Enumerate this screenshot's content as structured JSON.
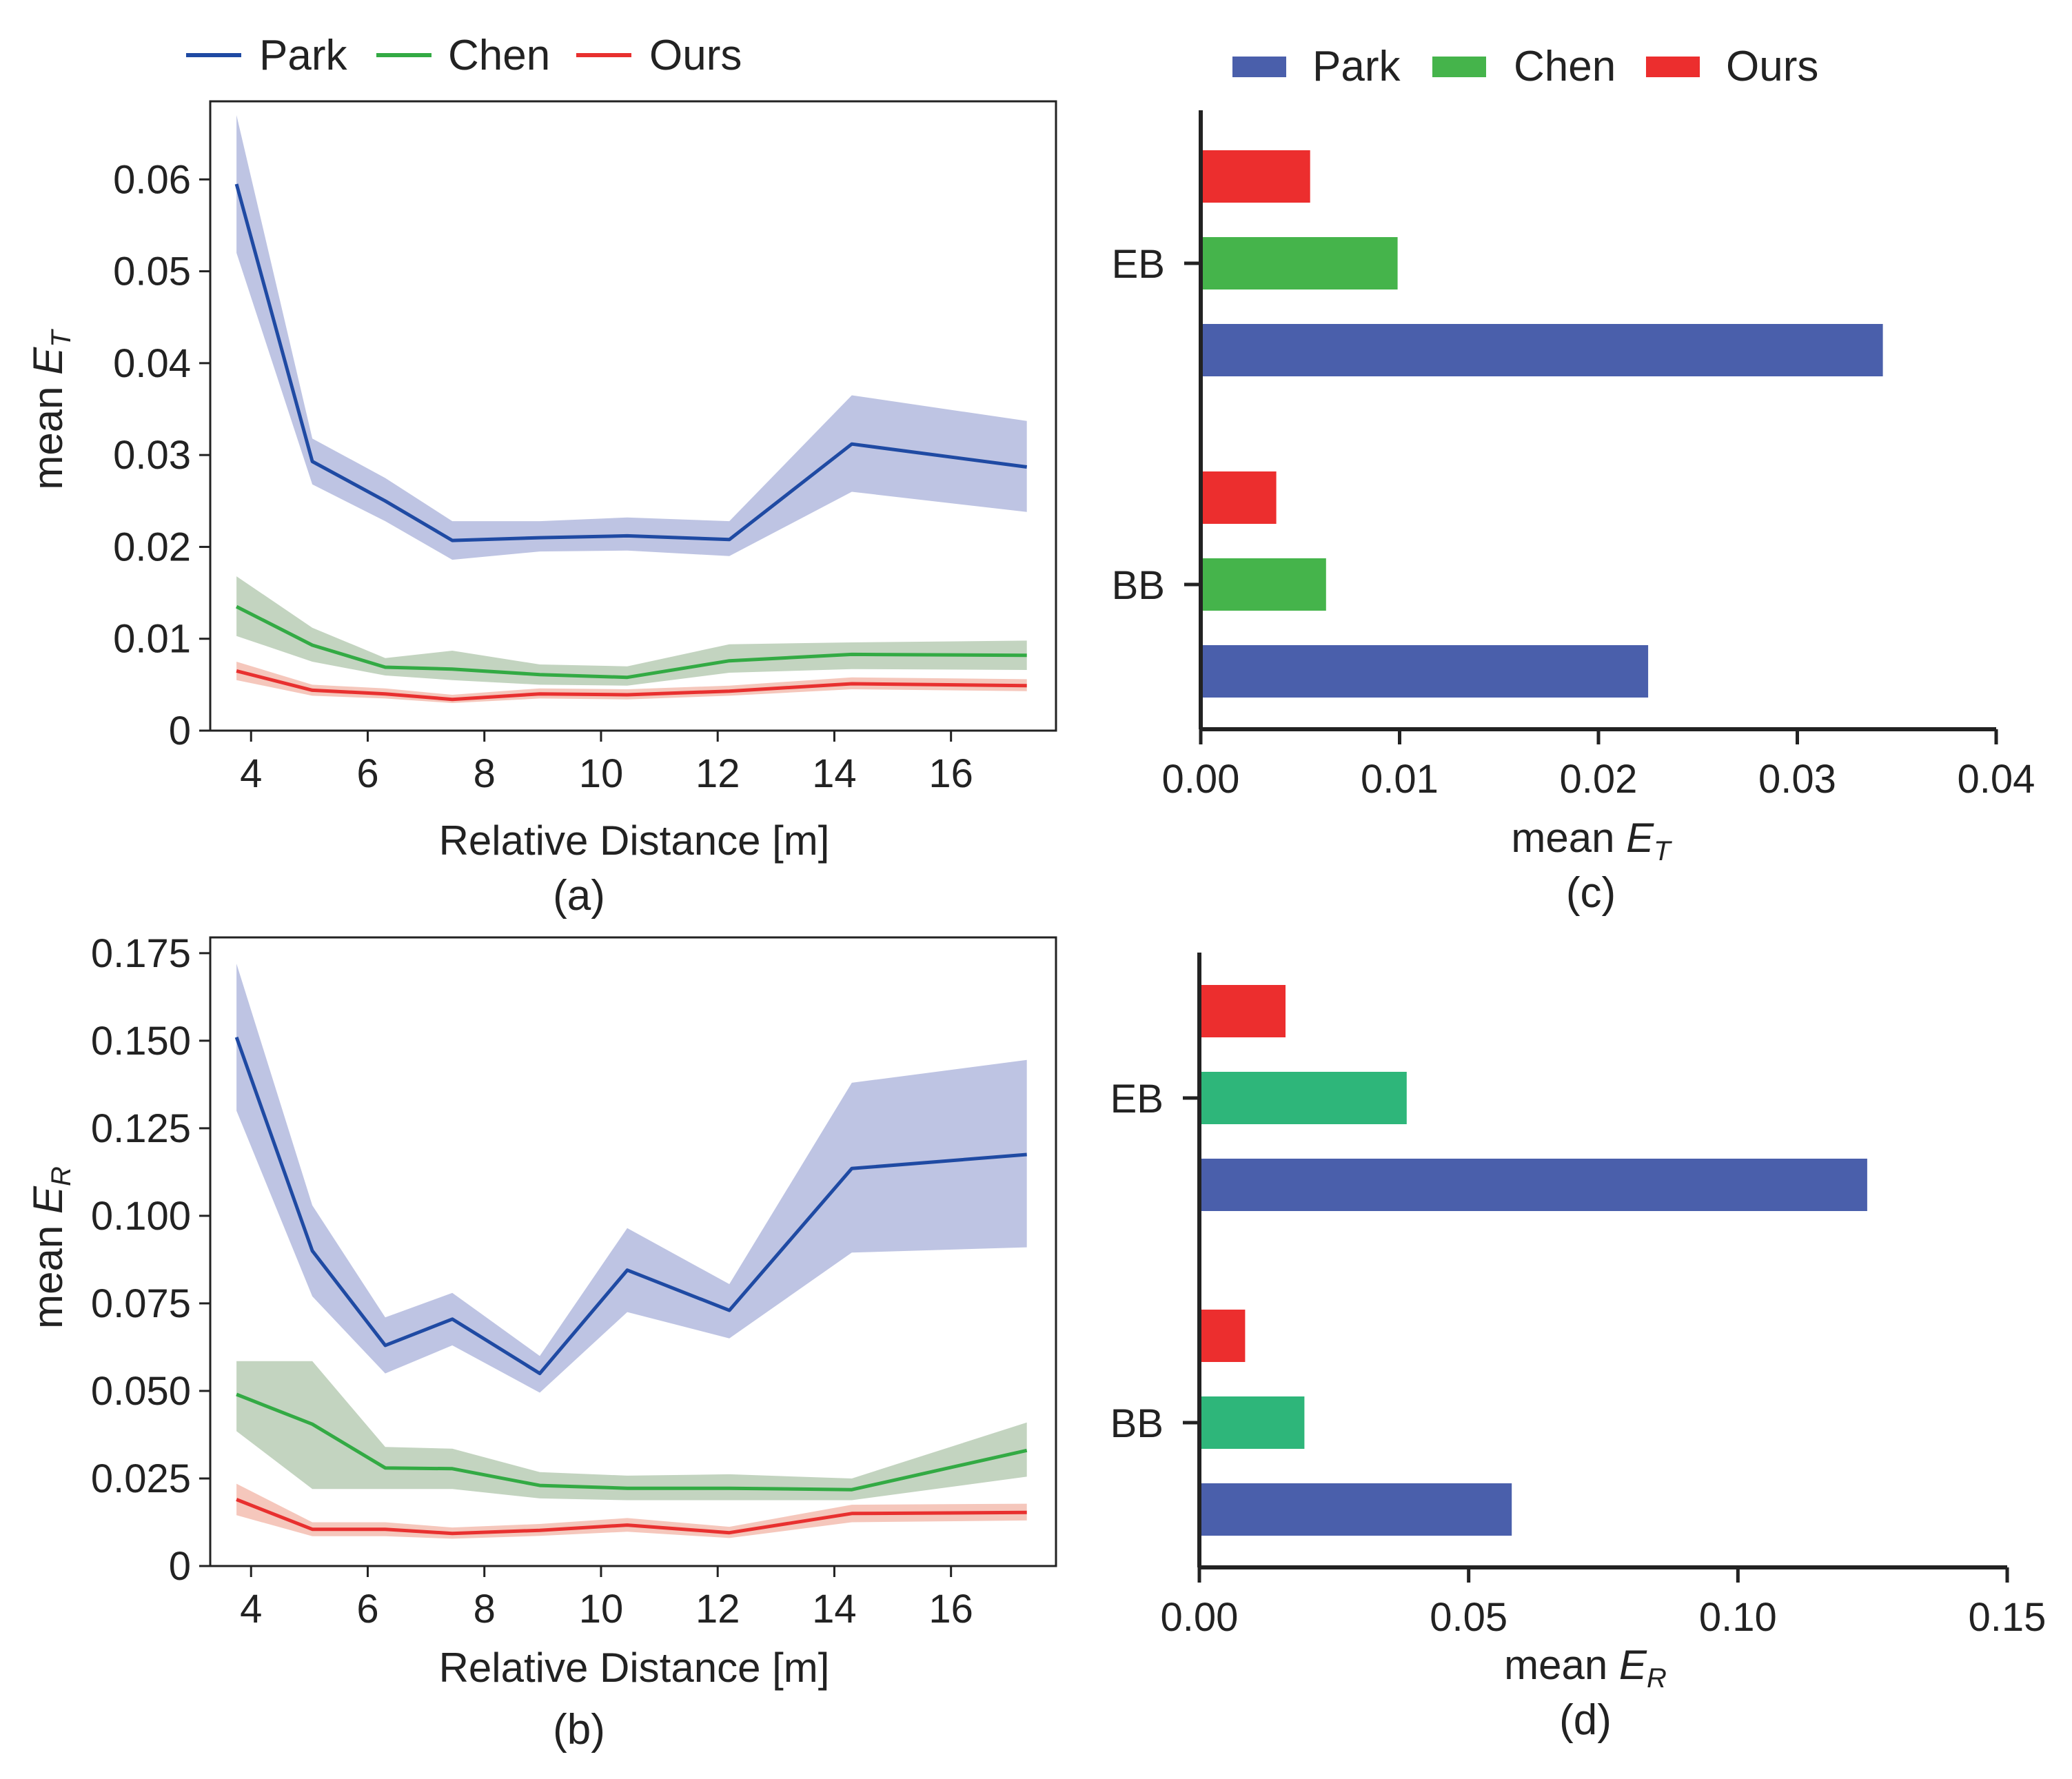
{
  "colors": {
    "park_line": "#1f4aa3",
    "chen_line": "#33aa44",
    "ours_line": "#e8302f",
    "park_band": "#b3bade",
    "chen_band": "#b9ccb5",
    "ours_band": "#f3bdb0",
    "park_bar": "#4a5fab",
    "chen_bar_c": "#45b44b",
    "chen_bar_d": "#2eb67a",
    "ours_bar": "#ec2e2e"
  },
  "chart_data": [
    {
      "id": "a",
      "type": "line",
      "caption": "(a)",
      "xlabel": "Relative Distance [m]",
      "ylabel_main": "mean ",
      "ylabel_symbol": "E",
      "ylabel_sub": "T",
      "xlim": [
        3.3,
        17.8
      ],
      "ylim": [
        0,
        0.0685
      ],
      "xticks": [
        4,
        6,
        8,
        10,
        12,
        14,
        16
      ],
      "xtick_labels": [
        "4",
        "6",
        "8",
        "10",
        "12",
        "14",
        "16"
      ],
      "yticks": [
        0,
        0.01,
        0.02,
        0.03,
        0.04,
        0.05,
        0.06
      ],
      "ytick_labels": [
        "0",
        "0.01",
        "0.02",
        "0.03",
        "0.04",
        "0.05",
        "0.06"
      ],
      "legend": [
        "Park",
        "Chen",
        "Ours"
      ],
      "x": [
        3.75,
        5.05,
        6.3,
        7.45,
        8.95,
        10.45,
        12.2,
        14.3,
        17.3
      ],
      "series": [
        {
          "name": "Park",
          "values": [
            0.0595,
            0.0293,
            0.025,
            0.0207,
            0.021,
            0.0212,
            0.0208,
            0.0312,
            0.0287
          ],
          "lower": [
            0.052,
            0.0268,
            0.0228,
            0.0186,
            0.0195,
            0.0196,
            0.019,
            0.026,
            0.0238
          ],
          "upper": [
            0.067,
            0.0318,
            0.0275,
            0.0228,
            0.0228,
            0.0232,
            0.0228,
            0.0365,
            0.0337
          ]
        },
        {
          "name": "Chen",
          "values": [
            0.0135,
            0.0093,
            0.0069,
            0.0067,
            0.0061,
            0.0058,
            0.0076,
            0.0083,
            0.0082
          ],
          "lower": [
            0.0103,
            0.0075,
            0.006,
            0.0055,
            0.005,
            0.0049,
            0.0063,
            0.0067,
            0.0066
          ],
          "upper": [
            0.0168,
            0.0112,
            0.0079,
            0.0087,
            0.0072,
            0.007,
            0.0094,
            0.0096,
            0.0098
          ]
        },
        {
          "name": "Ours",
          "values": [
            0.0065,
            0.0044,
            0.004,
            0.0034,
            0.004,
            0.0039,
            0.0043,
            0.0051,
            0.0049
          ],
          "lower": [
            0.0055,
            0.0038,
            0.0035,
            0.003,
            0.0035,
            0.0034,
            0.0038,
            0.0045,
            0.0043
          ],
          "upper": [
            0.0075,
            0.005,
            0.0046,
            0.0039,
            0.0046,
            0.0045,
            0.0049,
            0.0058,
            0.0056
          ]
        }
      ]
    },
    {
      "id": "b",
      "type": "line",
      "caption": "(b)",
      "xlabel": "Relative Distance [m]",
      "ylabel_main": "mean ",
      "ylabel_symbol": "E",
      "ylabel_sub": "R",
      "xlim": [
        3.3,
        17.8
      ],
      "ylim": [
        0,
        0.1795
      ],
      "xticks": [
        4,
        6,
        8,
        10,
        12,
        14,
        16
      ],
      "xtick_labels": [
        "4",
        "6",
        "8",
        "10",
        "12",
        "14",
        "16"
      ],
      "yticks": [
        0,
        0.025,
        0.05,
        0.075,
        0.1,
        0.125,
        0.15,
        0.175
      ],
      "ytick_labels": [
        "0",
        "0.025",
        "0.050",
        "0.075",
        "0.100",
        "0.125",
        "0.150",
        "0.175"
      ],
      "x": [
        3.75,
        5.05,
        6.3,
        7.45,
        8.95,
        10.45,
        12.2,
        14.3,
        17.3
      ],
      "series": [
        {
          "name": "Park",
          "values": [
            0.151,
            0.09,
            0.063,
            0.0705,
            0.055,
            0.0845,
            0.073,
            0.1135,
            0.1175
          ],
          "lower": [
            0.13,
            0.077,
            0.055,
            0.063,
            0.0495,
            0.0725,
            0.065,
            0.0895,
            0.091
          ],
          "upper": [
            0.172,
            0.103,
            0.071,
            0.078,
            0.06,
            0.0965,
            0.0805,
            0.138,
            0.1445
          ]
        },
        {
          "name": "Chen",
          "values": [
            0.049,
            0.0405,
            0.028,
            0.0278,
            0.023,
            0.0222,
            0.0222,
            0.0218,
            0.033
          ],
          "lower": [
            0.0385,
            0.022,
            0.022,
            0.022,
            0.0193,
            0.0188,
            0.0188,
            0.0188,
            0.0255
          ],
          "upper": [
            0.0585,
            0.0585,
            0.034,
            0.0335,
            0.0268,
            0.0258,
            0.0262,
            0.025,
            0.041
          ]
        },
        {
          "name": "Ours",
          "values": [
            0.019,
            0.0105,
            0.0105,
            0.0093,
            0.0102,
            0.0117,
            0.0095,
            0.015,
            0.0153
          ],
          "lower": [
            0.0145,
            0.0085,
            0.0085,
            0.0078,
            0.0086,
            0.0098,
            0.008,
            0.0125,
            0.013
          ],
          "upper": [
            0.0235,
            0.0125,
            0.0125,
            0.011,
            0.012,
            0.0137,
            0.0112,
            0.0175,
            0.0178
          ]
        }
      ]
    },
    {
      "id": "c",
      "type": "bar",
      "orientation": "horizontal",
      "caption": "(c)",
      "xlabel_main": "mean ",
      "xlabel_symbol": "E",
      "xlabel_sub": "T",
      "xlim": [
        0,
        0.04
      ],
      "xticks": [
        0,
        0.01,
        0.02,
        0.03,
        0.04
      ],
      "xtick_labels": [
        "0.00",
        "0.01",
        "0.02",
        "0.03",
        "0.04"
      ],
      "categories": [
        "EB",
        "BB"
      ],
      "legend": [
        "Park",
        "Chen",
        "Ours"
      ],
      "series": [
        {
          "name": "Ours",
          "values": [
            0.0055,
            0.0038
          ]
        },
        {
          "name": "Chen",
          "values": [
            0.0099,
            0.0063
          ]
        },
        {
          "name": "Park",
          "values": [
            0.0343,
            0.0225
          ]
        }
      ]
    },
    {
      "id": "d",
      "type": "bar",
      "orientation": "horizontal",
      "caption": "(d)",
      "xlabel_main": "mean ",
      "xlabel_symbol": "E",
      "xlabel_sub": "R",
      "xlim": [
        0,
        0.15
      ],
      "xticks": [
        0,
        0.05,
        0.1,
        0.15
      ],
      "xtick_labels": [
        "0.00",
        "0.05",
        "0.10",
        "0.15"
      ],
      "categories": [
        "EB",
        "BB"
      ],
      "series": [
        {
          "name": "Ours",
          "values": [
            0.016,
            0.0085
          ]
        },
        {
          "name": "Chen",
          "values": [
            0.0385,
            0.0195
          ]
        },
        {
          "name": "Park",
          "values": [
            0.124,
            0.058
          ]
        }
      ]
    }
  ]
}
